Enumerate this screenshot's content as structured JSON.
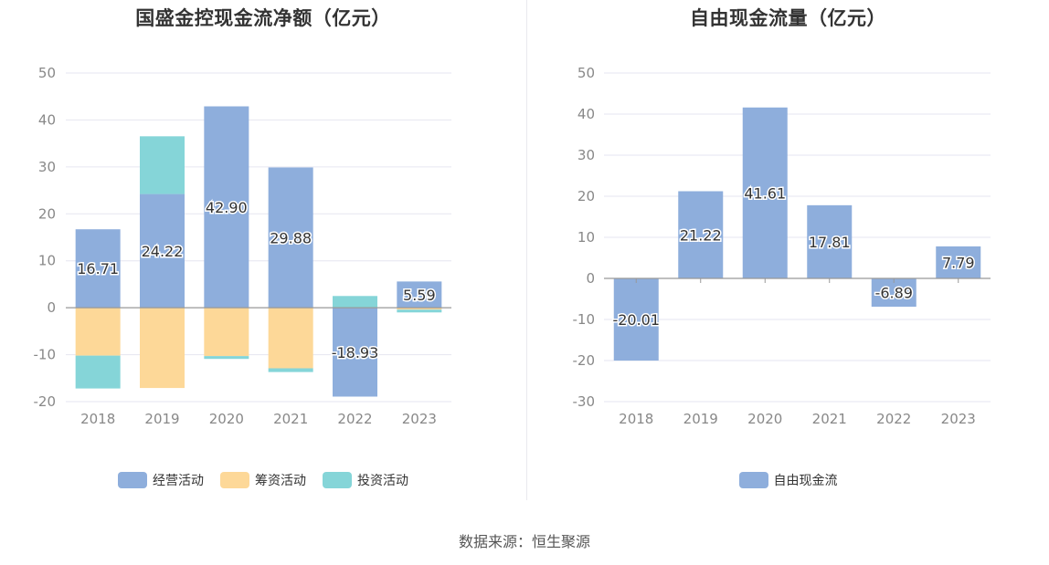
{
  "source_text": "数据来源：恒生聚源",
  "chart_data": [
    {
      "type": "bar",
      "stacked": true,
      "title": "国盛金控现金流净额（亿元）",
      "categories": [
        "2018",
        "2019",
        "2020",
        "2021",
        "2022",
        "2023"
      ],
      "ylim": [
        -20,
        50
      ],
      "yticks": [
        -20,
        -10,
        0,
        10,
        20,
        30,
        40,
        50
      ],
      "grid": true,
      "legend_position": "bottom-center",
      "series": [
        {
          "name": "经营活动",
          "color": "#8eaedc",
          "values": [
            16.71,
            24.22,
            42.9,
            29.88,
            -18.93,
            5.59
          ],
          "labels": [
            "16.71",
            "24.22",
            "42.90",
            "29.88",
            "-18.93",
            "5.59"
          ]
        },
        {
          "name": "筹资活动",
          "color": "#fdd898",
          "values": [
            -10.2,
            -17.1,
            -10.3,
            -12.9,
            0.0,
            -0.4
          ]
        },
        {
          "name": "投资活动",
          "color": "#85d5d8",
          "values": [
            -7.0,
            12.3,
            -0.6,
            -0.8,
            2.5,
            -0.6
          ]
        }
      ]
    },
    {
      "type": "bar",
      "title": "自由现金流量（亿元）",
      "categories": [
        "2018",
        "2019",
        "2020",
        "2021",
        "2022",
        "2023"
      ],
      "ylim": [
        -30,
        50
      ],
      "yticks": [
        -30,
        -20,
        -10,
        0,
        10,
        20,
        30,
        40,
        50
      ],
      "grid": true,
      "legend_position": "bottom-center",
      "series": [
        {
          "name": "自由现金流",
          "color": "#8eaedc",
          "values": [
            -20.01,
            21.22,
            41.61,
            17.81,
            -6.89,
            7.79
          ],
          "labels": [
            "-20.01",
            "21.22",
            "41.61",
            "17.81",
            "-6.89",
            "7.79"
          ]
        }
      ]
    }
  ]
}
